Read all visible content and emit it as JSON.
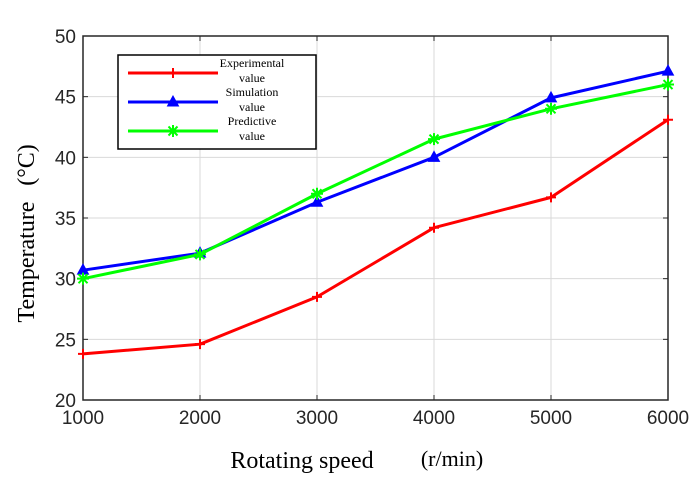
{
  "chart_data": {
    "type": "line",
    "title": "",
    "xlabel": "Rotating speed (r/min)",
    "xlabel_parts": [
      "Rotating speed",
      "(r/min)"
    ],
    "ylabel": "Temperature (°C)",
    "ylabel_parts": [
      "Temperature",
      "(°C)"
    ],
    "x": [
      1000,
      2000,
      3000,
      4000,
      5000,
      6000
    ],
    "x_tick_labels": [
      "1000",
      "2000",
      "3000",
      "4000",
      "5000",
      "6000"
    ],
    "y_ticks": [
      20,
      25,
      30,
      35,
      40,
      45,
      50
    ],
    "y_tick_labels": [
      "20",
      "25",
      "30",
      "35",
      "40",
      "45",
      "50"
    ],
    "xlim": [
      1000,
      6000
    ],
    "ylim": [
      20,
      50
    ],
    "grid": true,
    "legend_position": "top-left",
    "series": [
      {
        "name": "Experimental value",
        "legend_lines": [
          "Experimental",
          "value"
        ],
        "color": "#ff0000",
        "marker": "plus",
        "values": [
          23.8,
          24.6,
          28.5,
          34.2,
          36.7,
          43.1
        ]
      },
      {
        "name": "Simulation value",
        "legend_lines": [
          "Simulation",
          "value"
        ],
        "color": "#0000ff",
        "marker": "triangle",
        "values": [
          30.7,
          32.1,
          36.3,
          40.0,
          44.9,
          47.1
        ]
      },
      {
        "name": "Predictive value",
        "legend_lines": [
          "Predictive",
          "value"
        ],
        "color": "#00ff00",
        "marker": "star",
        "values": [
          30.0,
          32.0,
          37.0,
          41.5,
          44.0,
          46.0
        ]
      }
    ]
  }
}
